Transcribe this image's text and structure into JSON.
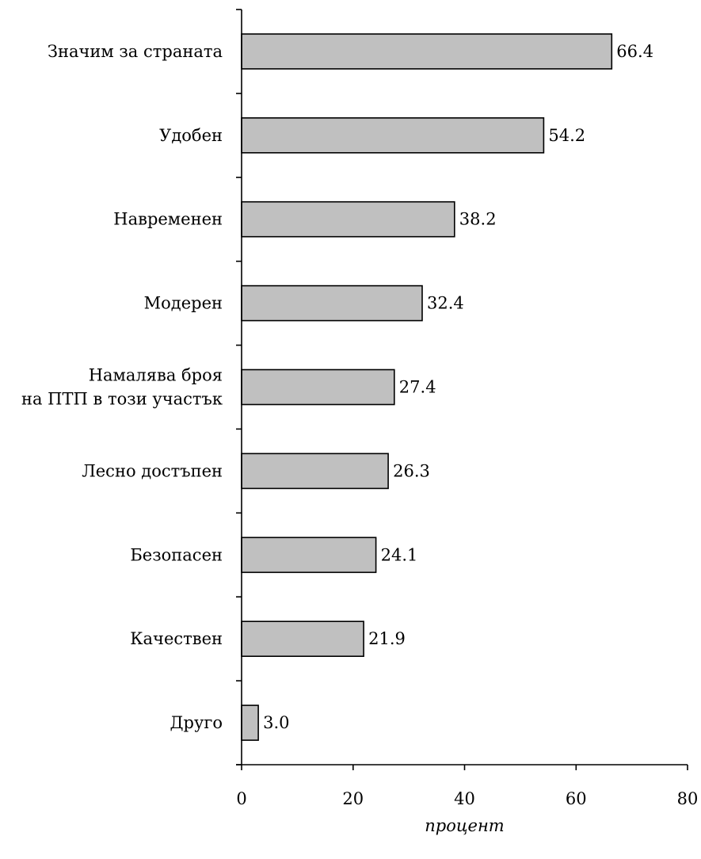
{
  "chart_data": {
    "type": "bar",
    "orientation": "horizontal",
    "categories": [
      "Значим за страната",
      "Удобен",
      "Навременен",
      "Модерен",
      "Намалява броя на ПТП в този участък",
      "Лесно достъпен",
      "Безопасен",
      "Качествен",
      "Друго"
    ],
    "category_lines": [
      [
        "Значим за страната"
      ],
      [
        "Удобен"
      ],
      [
        "Навременен"
      ],
      [
        "Модерен"
      ],
      [
        "Намалява броя",
        "на ПТП в този участък"
      ],
      [
        "Лесно достъпен"
      ],
      [
        "Безопасен"
      ],
      [
        "Качествен"
      ],
      [
        "Друго"
      ]
    ],
    "values": [
      66.4,
      54.2,
      38.2,
      32.4,
      27.4,
      26.3,
      24.1,
      21.9,
      3.0
    ],
    "value_labels": [
      "66.4",
      "54.2",
      "38.2",
      "32.4",
      "27.4",
      "26.3",
      "24.1",
      "21.9",
      "3.0"
    ],
    "xlim": [
      0,
      80
    ],
    "xticks": [
      0,
      20,
      40,
      60,
      80
    ],
    "xtick_labels": [
      "0",
      "20",
      "40",
      "60",
      "80"
    ],
    "xlabel": "процент",
    "ylabel": "",
    "title": "",
    "grid": false,
    "legend": "none",
    "bar_color": "#c0c0c0",
    "bar_edge_color": "#000000"
  }
}
